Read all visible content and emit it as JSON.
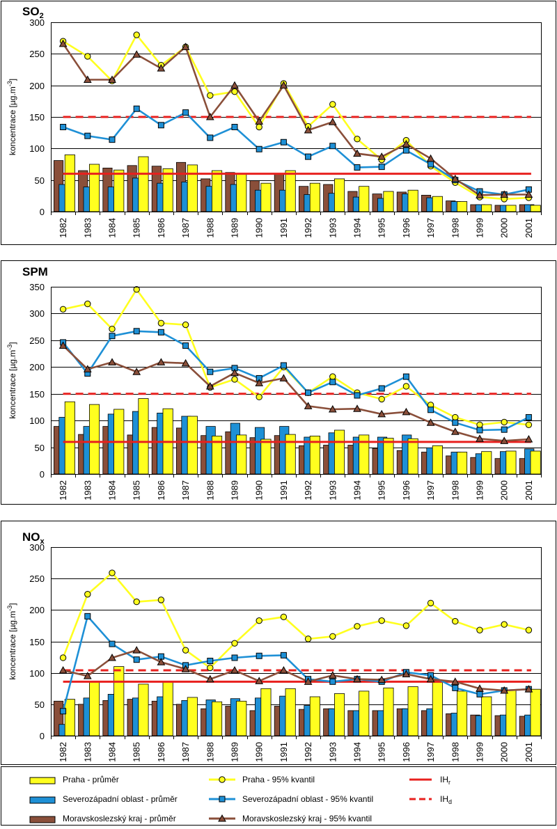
{
  "chart_data": [
    {
      "type": "bar",
      "title": "SO",
      "title_sub": "2",
      "title_sub_mode": "sub",
      "ylabel": "koncentrace  [µg.m",
      "ylabel_sup": "-3",
      "ylabel_end": "]",
      "ylim": [
        0,
        300
      ],
      "yticks": [
        0,
        50,
        100,
        150,
        200,
        250,
        300
      ],
      "grid": true,
      "categories": [
        "1982",
        "1983",
        "1984",
        "1985",
        "1986",
        "1987",
        "1988",
        "1989",
        "1990",
        "1991",
        "1992",
        "1993",
        "1994",
        "1995",
        "1996",
        "1997",
        "1998",
        "1999",
        "2000",
        "2001"
      ],
      "bar_series": [
        {
          "key": "moravskoslezsky_prumer",
          "color": "#8a4f3a",
          "values": [
            81,
            65,
            69,
            73,
            72,
            78,
            52,
            62,
            49,
            60,
            40,
            43,
            32,
            28,
            31,
            26,
            17,
            11,
            10,
            11
          ]
        },
        {
          "key": "severozapadni_prumer",
          "color": "#1e90d6",
          "values": [
            43,
            39,
            39,
            53,
            45,
            47,
            40,
            43,
            34,
            34,
            27,
            29,
            23,
            21,
            28,
            22,
            16,
            11,
            10,
            11
          ]
        },
        {
          "key": "praha_prumer",
          "color": "#ffff1f",
          "values": [
            90,
            75,
            66,
            87,
            68,
            74,
            65,
            60,
            45,
            65,
            45,
            52,
            40,
            32,
            34,
            24,
            16,
            11,
            10,
            10
          ]
        }
      ],
      "line_series": [
        {
          "key": "praha_kvantil",
          "color": "#ffff1f",
          "marker": "circle",
          "values": [
            270,
            246,
            207,
            280,
            232,
            261,
            184,
            190,
            134,
            203,
            135,
            170,
            115,
            82,
            113,
            72,
            46,
            23,
            20,
            22
          ]
        },
        {
          "key": "severozapadni_kvantil",
          "color": "#1e90d6",
          "marker": "square",
          "values": [
            134,
            120,
            114,
            163,
            137,
            157,
            117,
            134,
            99,
            110,
            87,
            104,
            70,
            71,
            97,
            75,
            50,
            32,
            27,
            35
          ]
        },
        {
          "key": "moravskoslezsky_kvantil",
          "color": "#8a4f3a",
          "marker": "triangle",
          "values": [
            266,
            209,
            209,
            249,
            227,
            261,
            150,
            200,
            143,
            200,
            129,
            142,
            92,
            87,
            107,
            84,
            52,
            26,
            27,
            27
          ]
        }
      ],
      "reference_lines": [
        {
          "key": "IHr",
          "color": "#e8201e",
          "style": "solid",
          "value": 60
        },
        {
          "key": "IHd",
          "color": "#e8201e",
          "style": "dashed",
          "value": 150
        }
      ]
    },
    {
      "type": "bar",
      "title": "SPM",
      "title_sub": "",
      "title_sub_mode": "sub",
      "ylabel": "koncentrace  [µg.m",
      "ylabel_sup": "-3",
      "ylabel_end": "]",
      "ylim": [
        0,
        350
      ],
      "yticks": [
        0,
        50,
        100,
        150,
        200,
        250,
        300,
        350
      ],
      "grid": true,
      "categories": [
        "1982",
        "1983",
        "1984",
        "1985",
        "1986",
        "1987",
        "1988",
        "1989",
        "1990",
        "1991",
        "1992",
        "1993",
        "1994",
        "1995",
        "1996",
        "1997",
        "1998",
        "1999",
        "2000",
        "2001"
      ],
      "bar_series": [
        {
          "key": "moravskoslezsky_prumer",
          "color": "#8a4f3a",
          "values": [
            89,
            74,
            89,
            73,
            87,
            86,
            72,
            79,
            68,
            72,
            53,
            54,
            54,
            48,
            44,
            41,
            34,
            31,
            29,
            29
          ]
        },
        {
          "key": "severozapadni_prumer",
          "color": "#1e90d6",
          "values": [
            106,
            89,
            112,
            117,
            114,
            108,
            89,
            95,
            87,
            89,
            69,
            77,
            69,
            69,
            73,
            49,
            41,
            38,
            42,
            47
          ]
        },
        {
          "key": "praha_prumer",
          "color": "#ffff1f",
          "values": [
            135,
            130,
            121,
            141,
            122,
            108,
            71,
            73,
            65,
            74,
            71,
            82,
            73,
            67,
            66,
            53,
            41,
            42,
            43,
            43
          ]
        }
      ],
      "line_series": [
        {
          "key": "praha_kvantil",
          "color": "#ffff1f",
          "marker": "circle",
          "values": [
            308,
            318,
            271,
            345,
            282,
            279,
            162,
            177,
            144,
            200,
            152,
            182,
            152,
            140,
            164,
            129,
            106,
            92,
            97,
            92
          ]
        },
        {
          "key": "severozapadni_kvantil",
          "color": "#1e90d6",
          "marker": "square",
          "values": [
            246,
            188,
            258,
            267,
            265,
            240,
            191,
            198,
            179,
            203,
            152,
            172,
            147,
            160,
            182,
            120,
            96,
            82,
            83,
            106
          ]
        },
        {
          "key": "moravskoslezsky_kvantil",
          "color": "#8a4f3a",
          "marker": "triangle",
          "values": [
            240,
            196,
            209,
            191,
            209,
            207,
            164,
            189,
            170,
            179,
            127,
            121,
            122,
            112,
            116,
            96,
            79,
            66,
            62,
            65
          ]
        }
      ],
      "reference_lines": [
        {
          "key": "IHr",
          "color": "#e8201e",
          "style": "solid",
          "value": 60
        },
        {
          "key": "IHd",
          "color": "#e8201e",
          "style": "dashed",
          "value": 150
        }
      ]
    },
    {
      "type": "bar",
      "title": "NO",
      "title_sub": "x",
      "title_sub_mode": "sub",
      "ylabel": "koncentrace  [µg.m",
      "ylabel_sup": "-3",
      "ylabel_end": "]",
      "ylim": [
        0,
        300
      ],
      "yticks": [
        0,
        50,
        100,
        150,
        200,
        250,
        300
      ],
      "grid": true,
      "categories": [
        "1982",
        "1983",
        "1984",
        "1985",
        "1986",
        "1987",
        "1988",
        "1989",
        "1990",
        "1991",
        "1992",
        "1993",
        "1994",
        "1995",
        "1996",
        "1997",
        "1998",
        "1999",
        "2000",
        "2001"
      ],
      "bar_series": [
        {
          "key": "moravskoslezsky_prumer",
          "color": "#8a4f3a",
          "values": [
            55,
            50,
            56,
            58,
            55,
            50,
            43,
            47,
            40,
            47,
            42,
            43,
            40,
            40,
            43,
            40,
            35,
            33,
            32,
            31
          ]
        },
        {
          "key": "severozapadni_prumer",
          "color": "#1e90d6",
          "values": [
            18,
            60,
            66,
            60,
            62,
            56,
            57,
            59,
            60,
            63,
            48,
            43,
            40,
            40,
            43,
            43,
            36,
            32,
            33,
            33
          ]
        },
        {
          "key": "praha_prumer",
          "color": "#ffff1f",
          "values": [
            58,
            86,
            110,
            82,
            86,
            61,
            54,
            55,
            75,
            75,
            62,
            67,
            71,
            76,
            78,
            88,
            71,
            62,
            73,
            74
          ]
        }
      ],
      "line_series": [
        {
          "key": "praha_kvantil",
          "color": "#ffff1f",
          "marker": "circle",
          "values": [
            124,
            225,
            259,
            213,
            216,
            136,
            108,
            147,
            183,
            189,
            154,
            158,
            174,
            183,
            175,
            211,
            182,
            168,
            177,
            168
          ]
        },
        {
          "key": "severozapadni_kvantil",
          "color": "#1e90d6",
          "marker": "square",
          "values": [
            39,
            190,
            146,
            121,
            126,
            112,
            119,
            124,
            127,
            128,
            90,
            86,
            90,
            86,
            101,
            96,
            76,
            66,
            72,
            74
          ]
        },
        {
          "key": "moravskoslezsky_kvantil",
          "color": "#8a4f3a",
          "marker": "triangle",
          "values": [
            104,
            95,
            124,
            136,
            117,
            106,
            90,
            104,
            87,
            104,
            86,
            96,
            90,
            89,
            98,
            90,
            86,
            75,
            72,
            74
          ]
        }
      ],
      "reference_lines": [
        {
          "key": "IHr",
          "color": "#e8201e",
          "style": "solid",
          "value": 86
        },
        {
          "key": "IHd",
          "color": "#e8201e",
          "style": "dashed",
          "value": 104
        }
      ]
    }
  ],
  "legend": {
    "items": [
      {
        "key": "praha_prumer",
        "label": "Praha - průměr",
        "kind": "bar",
        "color": "#ffff1f"
      },
      {
        "key": "praha_kvantil",
        "label": "Praha  - 95% kvantil",
        "kind": "line",
        "color": "#ffff1f",
        "marker": "circle"
      },
      {
        "key": "IHr",
        "label": "IH",
        "sub": "r",
        "kind": "ref",
        "color": "#e8201e",
        "style": "solid"
      },
      {
        "key": "severozapadni_prumer",
        "label": "Severozápadní oblast - průměr",
        "kind": "bar",
        "color": "#1e90d6"
      },
      {
        "key": "severozapadni_kvantil",
        "label": "Severozápadní oblast  - 95% kvantil",
        "kind": "line",
        "color": "#1e90d6",
        "marker": "square"
      },
      {
        "key": "IHd",
        "label": "IH",
        "sub": "d",
        "kind": "ref",
        "color": "#e8201e",
        "style": "dashed"
      },
      {
        "key": "moravskoslezsky_prumer",
        "label": "Moravskoslezský kraj - průměr",
        "kind": "bar",
        "color": "#8a4f3a"
      },
      {
        "key": "moravskoslezsky_kvantil",
        "label": "Moravskoslezský kraj - 95% kvantil",
        "kind": "line",
        "color": "#8a4f3a",
        "marker": "triangle"
      }
    ]
  }
}
